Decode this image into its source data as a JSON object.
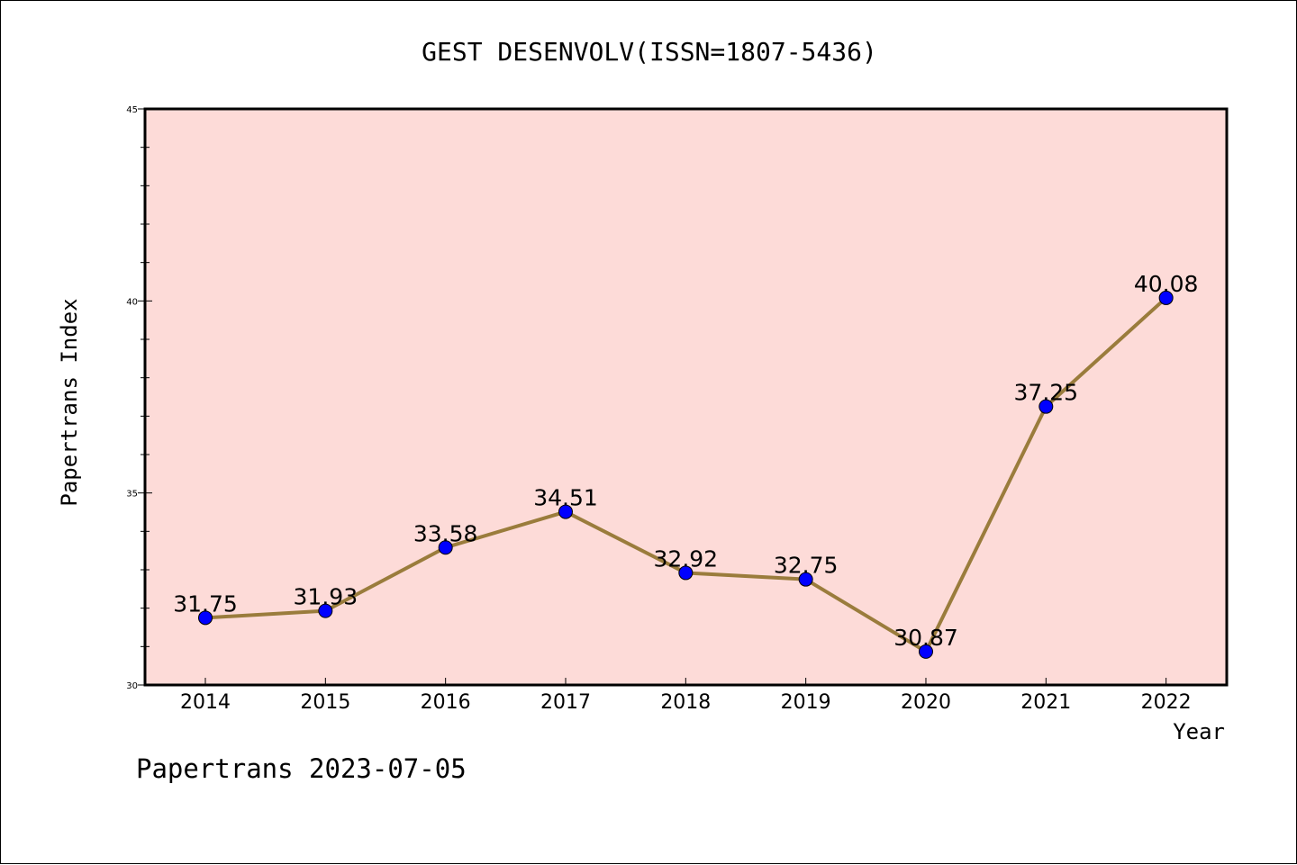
{
  "chart_data": {
    "type": "line",
    "title": "GEST DESENVOLV(ISSN=1807-5436)",
    "xlabel": "Year",
    "ylabel": "Papertrans Index",
    "footer": "Papertrans 2023-07-05",
    "categories": [
      "2014",
      "2015",
      "2016",
      "2017",
      "2018",
      "2019",
      "2020",
      "2021",
      "2022"
    ],
    "series": [
      {
        "values": [
          31.75,
          31.93,
          33.58,
          34.51,
          32.92,
          32.75,
          30.87,
          37.25,
          40.08
        ],
        "labels": [
          "31.75",
          "31.93",
          "33.58",
          "34.51",
          "32.92",
          "32.75",
          "30.87",
          "37.25",
          "40.08"
        ]
      }
    ],
    "ylim": [
      30,
      45
    ],
    "y_ticks": [
      "30",
      "35",
      "40",
      "45"
    ],
    "grid": false,
    "colors": {
      "plot_background": "#fddbd8",
      "line": "#9a7c3c",
      "marker": "#0000ff"
    }
  }
}
